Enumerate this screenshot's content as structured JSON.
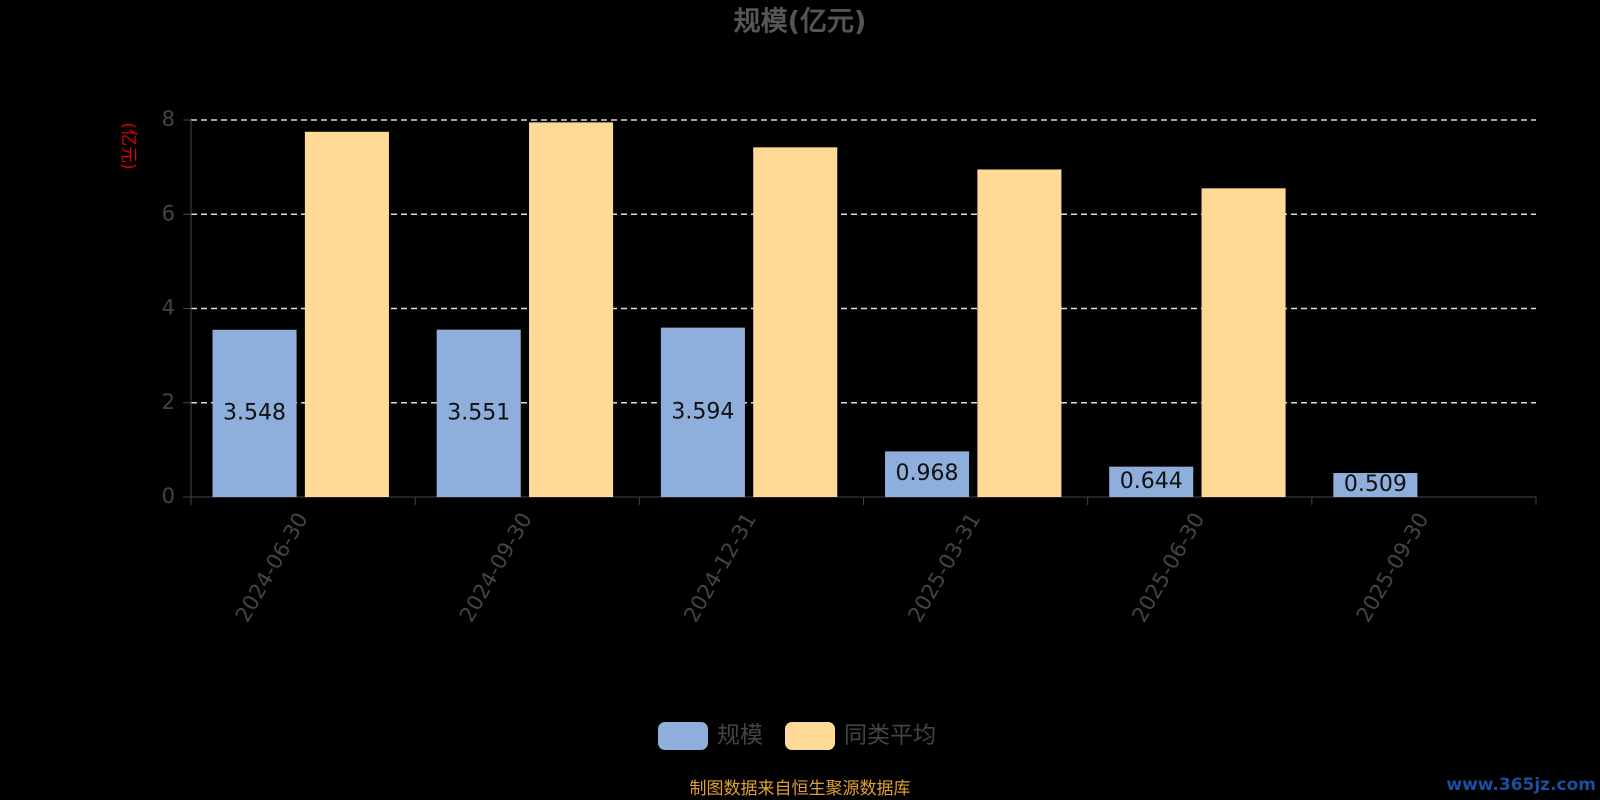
{
  "chart_data": {
    "type": "bar",
    "title": "规模(亿元)",
    "y_axis_label": "(亿元)",
    "categories": [
      "2024-06-30",
      "2024-09-30",
      "2024-12-31",
      "2025-03-31",
      "2025-06-30",
      "2025-09-30"
    ],
    "series": [
      {
        "name": "规模",
        "color": "#8eaedb",
        "values": [
          3.548,
          3.551,
          3.594,
          0.968,
          0.644,
          0.509
        ],
        "show_labels": true
      },
      {
        "name": "同类平均",
        "color": "#ffd996",
        "values": [
          7.75,
          7.95,
          7.42,
          6.95,
          6.55,
          null
        ]
      }
    ],
    "ylim": [
      0,
      8
    ],
    "yticks": [
      0,
      2,
      4,
      6,
      8
    ],
    "grid": true,
    "footer": "制图数据来自恒生聚源数据库",
    "watermark": "www.365jz.com"
  }
}
